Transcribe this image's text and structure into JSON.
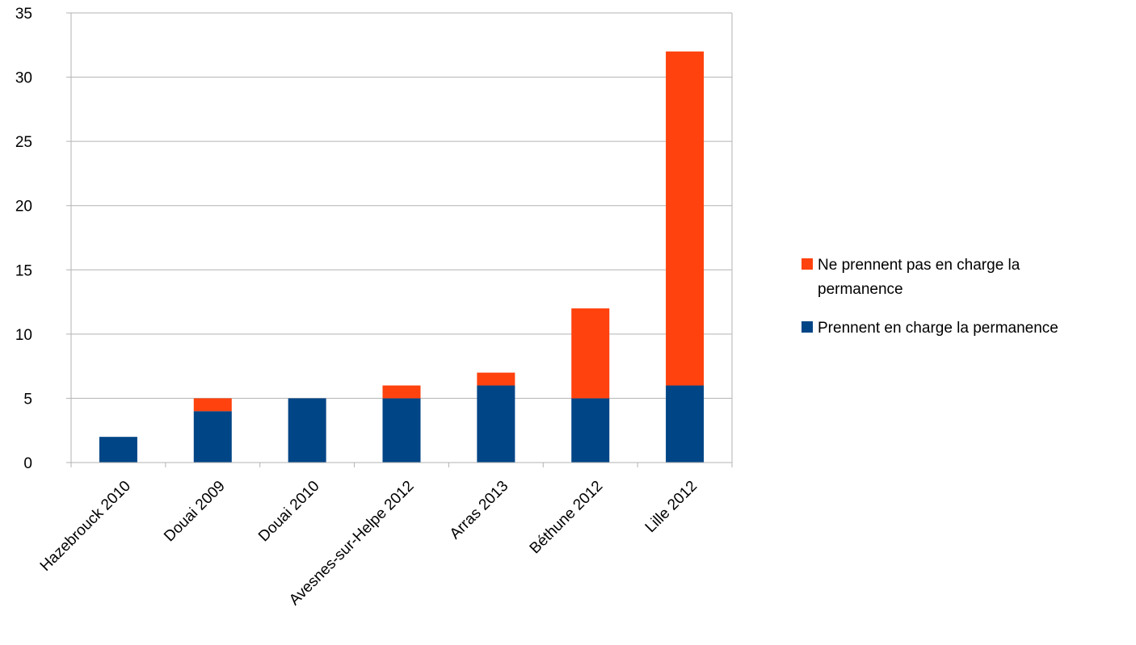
{
  "chart_data": {
    "type": "bar",
    "stacked": true,
    "categories": [
      "Hazebrouck 2010",
      "Douai 2009",
      "Douai 2010",
      "Avesnes-sur-Helpe 2012",
      "Arras 2013",
      "Béthune 2012",
      "Lille 2012"
    ],
    "series": [
      {
        "name": "Prennent en charge la permanence",
        "color": "#004586",
        "values": [
          2,
          4,
          5,
          5,
          6,
          5,
          6
        ]
      },
      {
        "name": "Ne prennent pas en charge la permanence",
        "color": "#ff420e",
        "values": [
          0,
          1,
          0,
          1,
          1,
          7,
          26
        ]
      }
    ],
    "ylim": [
      0,
      35
    ],
    "yticks": [
      "0",
      "5",
      "10",
      "15",
      "20",
      "25",
      "30",
      "35"
    ],
    "grid": true,
    "legend": "right",
    "legend_order": [
      1,
      0
    ],
    "title": "",
    "xlabel": "",
    "ylabel": ""
  }
}
